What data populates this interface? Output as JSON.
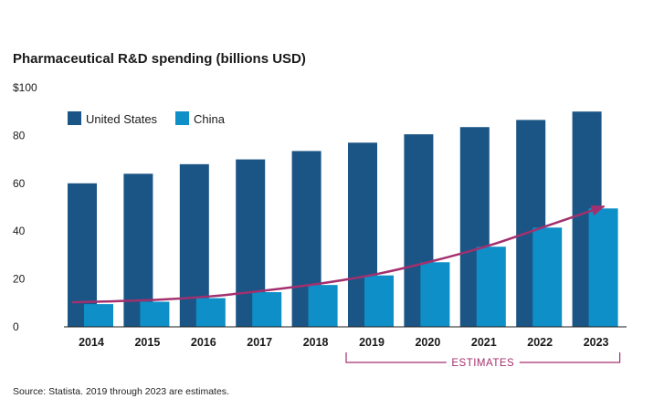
{
  "chart_data": {
    "type": "bar",
    "title": "Pharmaceutical R&D spending (billions USD)",
    "categories": [
      "2014",
      "2015",
      "2016",
      "2017",
      "2018",
      "2019",
      "2020",
      "2021",
      "2022",
      "2023"
    ],
    "series": [
      {
        "name": "United States",
        "color": "#1b5585",
        "values": [
          60,
          64,
          68,
          70,
          73.5,
          77,
          80.5,
          83.5,
          86.5,
          90
        ]
      },
      {
        "name": "China",
        "color": "#0e8fc7",
        "values": [
          9.5,
          10.5,
          12,
          14.5,
          17.5,
          21.5,
          27,
          33.5,
          41.5,
          49.5
        ]
      }
    ],
    "trend_arrow": {
      "color": "#a3306e",
      "values": [
        9.5,
        10.5,
        12,
        14.5,
        17.5,
        21.5,
        27,
        33.5,
        41.5,
        49.5
      ]
    },
    "yticks": [
      "$100",
      "80",
      "60",
      "40",
      "20",
      "0"
    ],
    "ytick_values": [
      100,
      80,
      60,
      40,
      20,
      0
    ],
    "ylim": [
      0,
      100
    ],
    "xlabel": "",
    "ylabel": "",
    "legend": "top-left",
    "grid": false,
    "annotation": {
      "text": "ESTIMATES",
      "start_category": "2019",
      "end_category": "2023",
      "color": "#a3306e"
    },
    "source": "Source: Statista. 2019 through 2023 are estimates."
  }
}
